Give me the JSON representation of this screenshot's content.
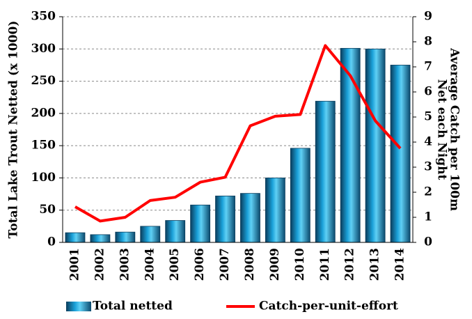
{
  "chart_data": {
    "type": "bar-line",
    "categories": [
      "2001",
      "2002",
      "2003",
      "2004",
      "2005",
      "2006",
      "2007",
      "2008",
      "2009",
      "2010",
      "2011",
      "2012",
      "2013",
      "2014"
    ],
    "series": [
      {
        "name": "Total netted",
        "type": "bar",
        "color": "#1aa0d8",
        "values": [
          15,
          12,
          16,
          25,
          34,
          58,
          72,
          76,
          100,
          146,
          219,
          301,
          300,
          275
        ]
      },
      {
        "name": "Catch-per-unit-effort",
        "type": "line",
        "axis": "y2",
        "color": "#ff0000",
        "values": [
          1.42,
          0.85,
          1.0,
          1.67,
          1.8,
          2.4,
          2.6,
          4.65,
          5.03,
          5.1,
          7.85,
          6.65,
          4.85,
          3.75
        ]
      }
    ],
    "ylabel": "Total Lake Trout Netted (x 1000)",
    "y2label": [
      "Average Catch per 100m",
      "Net each Night"
    ],
    "ylim": [
      0,
      350
    ],
    "yticks": [
      0,
      50,
      100,
      150,
      200,
      250,
      300,
      350
    ],
    "y2lim": [
      0,
      9
    ],
    "y2ticks": [
      0,
      1,
      2,
      3,
      4,
      5,
      6,
      7,
      8,
      9
    ],
    "grid": true,
    "legend": "bottom"
  }
}
